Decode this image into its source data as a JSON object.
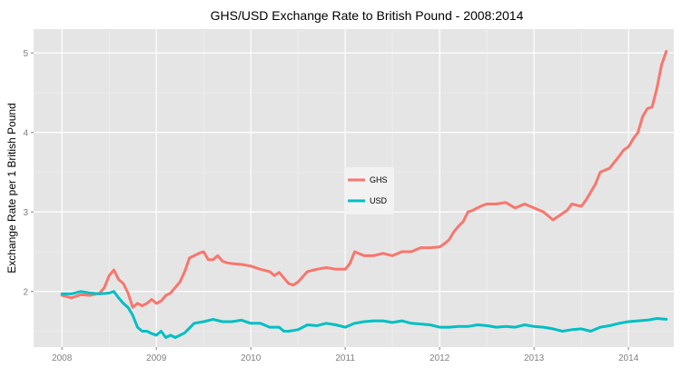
{
  "chart_data": {
    "type": "line",
    "title": "GHS/USD Exchange Rate to British Pound - 2008:2014",
    "xlabel": "",
    "ylabel": "Exchange Rate per 1 British Pound",
    "xlim": [
      2007.7,
      2014.48
    ],
    "ylim": [
      1.3,
      5.3
    ],
    "xticks": [
      2008,
      2009,
      2010,
      2011,
      2012,
      2013,
      2014
    ],
    "xtick_labels": [
      "2008",
      "2009",
      "2010",
      "2011",
      "2012",
      "2013",
      "2014"
    ],
    "yticks": [
      2,
      3,
      4,
      5
    ],
    "ytick_labels": [
      "2",
      "3",
      "4",
      "5"
    ],
    "grid": true,
    "legend": {
      "position": "center",
      "entries": [
        "GHS",
        "USD"
      ]
    },
    "colors": {
      "GHS": "#f8766d",
      "USD": "#00bfc4",
      "panel": "#e5e5e5",
      "grid_major": "#ffffff",
      "grid_minor": "#f2f2f2"
    },
    "series": [
      {
        "name": "GHS",
        "color": "#f8766d",
        "x": [
          2008.0,
          2008.1,
          2008.2,
          2008.3,
          2008.4,
          2008.45,
          2008.5,
          2008.55,
          2008.6,
          2008.65,
          2008.7,
          2008.75,
          2008.8,
          2008.85,
          2008.9,
          2008.95,
          2009.0,
          2009.05,
          2009.1,
          2009.15,
          2009.2,
          2009.25,
          2009.3,
          2009.35,
          2009.4,
          2009.45,
          2009.5,
          2009.55,
          2009.6,
          2009.65,
          2009.7,
          2009.75,
          2009.8,
          2009.9,
          2010.0,
          2010.1,
          2010.2,
          2010.25,
          2010.3,
          2010.4,
          2010.45,
          2010.5,
          2010.6,
          2010.7,
          2010.8,
          2010.9,
          2011.0,
          2011.05,
          2011.1,
          2011.2,
          2011.3,
          2011.4,
          2011.5,
          2011.6,
          2011.7,
          2011.8,
          2011.9,
          2012.0,
          2012.05,
          2012.1,
          2012.15,
          2012.2,
          2012.25,
          2012.3,
          2012.35,
          2012.4,
          2012.45,
          2012.5,
          2012.6,
          2012.7,
          2012.8,
          2012.9,
          2013.0,
          2013.1,
          2013.15,
          2013.2,
          2013.3,
          2013.35,
          2013.4,
          2013.5,
          2013.55,
          2013.6,
          2013.65,
          2013.7,
          2013.8,
          2013.9,
          2013.95,
          2014.0,
          2014.05,
          2014.1,
          2014.15,
          2014.2,
          2014.25,
          2014.3,
          2014.35,
          2014.4
        ],
        "values": [
          1.95,
          1.92,
          1.96,
          1.95,
          1.98,
          2.05,
          2.2,
          2.27,
          2.15,
          2.1,
          1.98,
          1.8,
          1.85,
          1.82,
          1.85,
          1.9,
          1.85,
          1.88,
          1.95,
          1.98,
          2.05,
          2.12,
          2.25,
          2.42,
          2.45,
          2.48,
          2.5,
          2.4,
          2.4,
          2.45,
          2.38,
          2.36,
          2.35,
          2.34,
          2.32,
          2.28,
          2.25,
          2.2,
          2.24,
          2.1,
          2.08,
          2.12,
          2.25,
          2.28,
          2.3,
          2.28,
          2.28,
          2.35,
          2.5,
          2.45,
          2.45,
          2.48,
          2.45,
          2.5,
          2.5,
          2.55,
          2.55,
          2.56,
          2.6,
          2.65,
          2.75,
          2.82,
          2.88,
          3.0,
          3.02,
          3.05,
          3.08,
          3.1,
          3.1,
          3.12,
          3.05,
          3.1,
          3.05,
          3.0,
          2.95,
          2.9,
          2.98,
          3.02,
          3.1,
          3.07,
          3.15,
          3.25,
          3.35,
          3.5,
          3.55,
          3.7,
          3.78,
          3.82,
          3.92,
          4.0,
          4.2,
          4.3,
          4.32,
          4.55,
          4.85,
          5.02
        ]
      },
      {
        "name": "USD",
        "color": "#00bfc4",
        "x": [
          2008.0,
          2008.1,
          2008.2,
          2008.3,
          2008.4,
          2008.5,
          2008.55,
          2008.6,
          2008.65,
          2008.7,
          2008.75,
          2008.8,
          2008.85,
          2008.9,
          2008.95,
          2009.0,
          2009.05,
          2009.1,
          2009.15,
          2009.2,
          2009.3,
          2009.4,
          2009.5,
          2009.6,
          2009.7,
          2009.8,
          2009.9,
          2010.0,
          2010.1,
          2010.2,
          2010.3,
          2010.35,
          2010.4,
          2010.5,
          2010.6,
          2010.7,
          2010.8,
          2010.9,
          2011.0,
          2011.1,
          2011.2,
          2011.3,
          2011.4,
          2011.5,
          2011.6,
          2011.7,
          2011.8,
          2011.9,
          2012.0,
          2012.1,
          2012.2,
          2012.3,
          2012.4,
          2012.5,
          2012.6,
          2012.7,
          2012.8,
          2012.9,
          2013.0,
          2013.1,
          2013.2,
          2013.3,
          2013.4,
          2013.5,
          2013.6,
          2013.7,
          2013.8,
          2013.9,
          2014.0,
          2014.1,
          2014.2,
          2014.3,
          2014.4
        ],
        "values": [
          1.97,
          1.97,
          2.0,
          1.98,
          1.97,
          1.98,
          2.0,
          1.92,
          1.85,
          1.8,
          1.7,
          1.55,
          1.5,
          1.5,
          1.47,
          1.45,
          1.5,
          1.42,
          1.45,
          1.42,
          1.48,
          1.6,
          1.62,
          1.65,
          1.62,
          1.62,
          1.64,
          1.6,
          1.6,
          1.55,
          1.55,
          1.5,
          1.5,
          1.52,
          1.58,
          1.57,
          1.6,
          1.58,
          1.55,
          1.6,
          1.62,
          1.63,
          1.63,
          1.61,
          1.63,
          1.6,
          1.59,
          1.58,
          1.55,
          1.55,
          1.56,
          1.56,
          1.58,
          1.57,
          1.55,
          1.56,
          1.55,
          1.58,
          1.56,
          1.55,
          1.53,
          1.5,
          1.52,
          1.53,
          1.5,
          1.55,
          1.57,
          1.6,
          1.62,
          1.63,
          1.64,
          1.66,
          1.65
        ]
      }
    ]
  }
}
